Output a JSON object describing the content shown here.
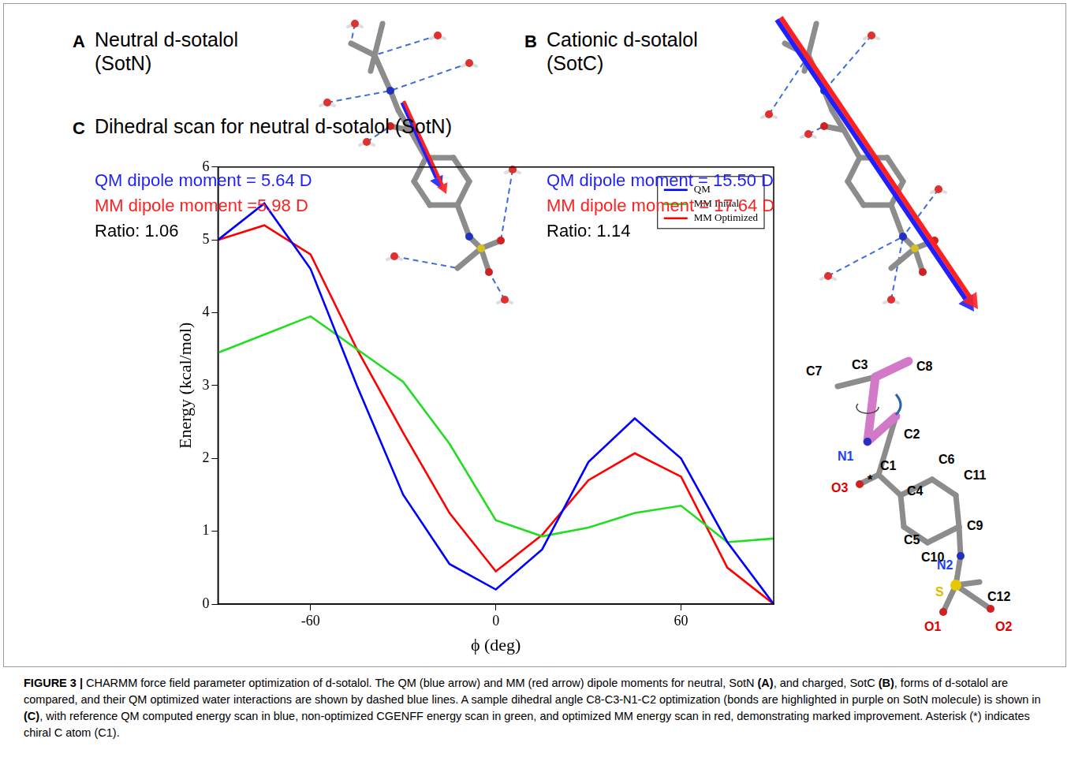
{
  "panels": [
    {
      "letter": "A",
      "title": [
        "Neutral d-sotalol",
        "(SotN)"
      ],
      "lines": [
        {
          "text": "QM dipole moment = 5.64 D",
          "color": "#1f1fff"
        },
        {
          "text": "MM dipole moment =5.98 D",
          "color": "#ff2020"
        },
        {
          "text": "Ratio: 1.06",
          "color": "#000000"
        }
      ]
    },
    {
      "letter": "B",
      "title": [
        "Cationic d-sotalol",
        "(SotC)"
      ],
      "lines": [
        {
          "text": "QM  dipole moment = 15.50 D",
          "color": "#1f1fff"
        },
        {
          "text": "MM dipole moment = 17.64 D",
          "color": "#ff2020"
        },
        {
          "text": "Ratio: 1.14",
          "color": "#000000"
        }
      ]
    },
    {
      "letter": "C",
      "title": [
        "Dihedral scan for neutral d-sotalol (SotN)"
      ],
      "lines": []
    }
  ],
  "chart_data": {
    "type": "line",
    "x_label": "ϕ (deg)",
    "y_label": "Energy (kcal/mol)",
    "x": [
      -90,
      -75,
      -60,
      -45,
      -30,
      -15,
      0,
      15,
      30,
      45,
      60,
      75,
      90
    ],
    "series": [
      {
        "name": "QM",
        "color": "#0000ff",
        "marker": "none",
        "line_style": "solid",
        "values": [
          5.0,
          5.5,
          4.6,
          3.0,
          1.5,
          0.55,
          0.2,
          0.75,
          1.95,
          2.55,
          2.0,
          0.85,
          0.0
        ]
      },
      {
        "name": "MM Initial",
        "color": "#22dd22",
        "marker": "none",
        "line_style": "solid",
        "values": [
          3.45,
          3.7,
          3.95,
          3.5,
          3.05,
          2.2,
          1.15,
          0.93,
          1.05,
          1.25,
          1.35,
          0.85,
          0.9
        ]
      },
      {
        "name": "MM Optimized",
        "color": "#ff0000",
        "marker": "none",
        "line_style": "solid",
        "values": [
          5.0,
          5.2,
          4.8,
          3.5,
          2.35,
          1.25,
          0.45,
          0.95,
          1.7,
          2.07,
          1.75,
          0.5,
          0.0
        ]
      }
    ],
    "xlim": [
      -90,
      90
    ],
    "xticks": [
      -60,
      0,
      60
    ],
    "ylim": [
      0,
      6
    ],
    "yticks": [
      0,
      1,
      2,
      3,
      4,
      5,
      6
    ],
    "grid": false,
    "legend": "upper right"
  },
  "molecule_labels": [
    {
      "text": "C7",
      "color": "#000000"
    },
    {
      "text": "C3",
      "color": "#000000"
    },
    {
      "text": "C8",
      "color": "#000000"
    },
    {
      "text": "C2",
      "color": "#000000"
    },
    {
      "text": "N1",
      "color": "#1f3fff"
    },
    {
      "text": "O3",
      "color": "#e00000"
    },
    {
      "text": "*",
      "color": "#000000"
    },
    {
      "text": "C1",
      "color": "#000000"
    },
    {
      "text": "C4",
      "color": "#000000"
    },
    {
      "text": "C6",
      "color": "#000000"
    },
    {
      "text": "C11",
      "color": "#000000"
    },
    {
      "text": "C5",
      "color": "#000000"
    },
    {
      "text": "C10",
      "color": "#000000"
    },
    {
      "text": "C9",
      "color": "#000000"
    },
    {
      "text": "N2",
      "color": "#1f3fff"
    },
    {
      "text": "S",
      "color": "#e6b800"
    },
    {
      "text": "C12",
      "color": "#000000"
    },
    {
      "text": "O1",
      "color": "#e00000"
    },
    {
      "text": "O2",
      "color": "#e00000"
    }
  ],
  "caption": [
    {
      "text": "FIGURE 3 | ",
      "bold": true
    },
    {
      "text": "CHARMM force field parameter optimization of d-sotalol. The QM (blue arrow) and MM (red arrow) dipole moments for neutral, SotN ",
      "bold": false
    },
    {
      "text": "(A)",
      "bold": true
    },
    {
      "text": ", and charged, SotC ",
      "bold": false
    },
    {
      "text": "(B)",
      "bold": true
    },
    {
      "text": ", forms of d-sotalol are compared, and their QM optimized water interactions are shown by dashed blue lines. A sample dihedral angle C8-C3-N1-C2 optimization (bonds are highlighted in purple on SotN molecule) is shown in ",
      "bold": false
    },
    {
      "text": "(C)",
      "bold": true
    },
    {
      "text": ", with reference QM computed energy scan in blue, non-optimized CGENFF energy scan in green, and optimized MM energy scan in red, demonstrating marked improvement. Asterisk (*) indicates chiral C atom (C1).",
      "bold": false
    }
  ]
}
